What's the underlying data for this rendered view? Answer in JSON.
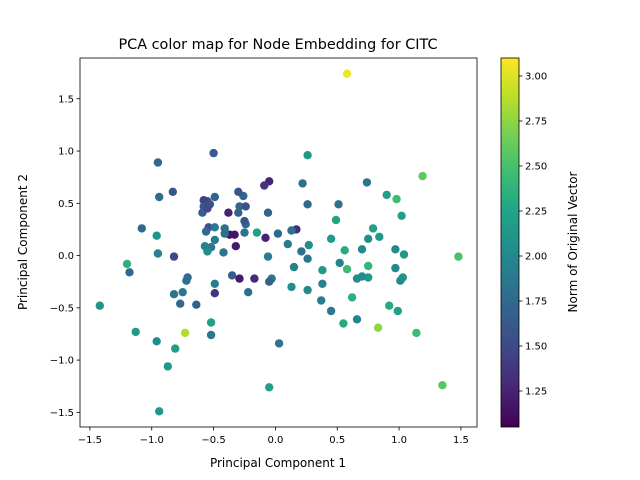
{
  "chart_data": {
    "type": "scatter",
    "title": "PCA color map for Node Embedding for CITC",
    "xlabel": "Principal Component 1",
    "ylabel": "Principal Component 2",
    "xlim": [
      -1.58,
      1.63
    ],
    "ylim": [
      -1.64,
      1.89
    ],
    "xticks": [
      -1.5,
      -1.0,
      -0.5,
      0.0,
      0.5,
      1.0,
      1.5
    ],
    "xtick_labels": [
      "−1.5",
      "−1.0",
      "−0.5",
      "0.0",
      "0.5",
      "1.0",
      "1.5"
    ],
    "yticks": [
      -1.5,
      -1.0,
      -0.5,
      0.0,
      0.5,
      1.0,
      1.5
    ],
    "ytick_labels": [
      "−1.5",
      "−1.0",
      "−0.5",
      "0.0",
      "0.5",
      "1.0",
      "1.5"
    ],
    "grid": false,
    "colormap": "viridis",
    "colorbar": {
      "label": "Norm of Original Vector",
      "range": [
        1.05,
        3.1
      ],
      "ticks": [
        1.25,
        1.5,
        1.75,
        2.0,
        2.25,
        2.5,
        2.75,
        3.0
      ],
      "tick_labels": [
        "1.25",
        "1.50",
        "1.75",
        "2.00",
        "2.25",
        "2.50",
        "2.75",
        "3.00"
      ]
    },
    "points": [
      {
        "x": 0.58,
        "y": 1.74,
        "c": 3.05
      },
      {
        "x": 1.19,
        "y": 0.76,
        "c": 2.6
      },
      {
        "x": 1.48,
        "y": -0.01,
        "c": 2.5
      },
      {
        "x": 1.35,
        "y": -1.24,
        "c": 2.55
      },
      {
        "x": 1.14,
        "y": -0.74,
        "c": 2.45
      },
      {
        "x": 0.83,
        "y": -0.69,
        "c": 2.75
      },
      {
        "x": 0.55,
        "y": -0.65,
        "c": 2.3
      },
      {
        "x": 0.92,
        "y": -0.48,
        "c": 2.3
      },
      {
        "x": 0.62,
        "y": -0.4,
        "c": 2.35
      },
      {
        "x": 0.58,
        "y": -0.13,
        "c": 2.45
      },
      {
        "x": 0.75,
        "y": -0.1,
        "c": 2.4
      },
      {
        "x": 0.56,
        "y": 0.05,
        "c": 2.3
      },
      {
        "x": 0.49,
        "y": 0.34,
        "c": 2.25
      },
      {
        "x": 0.45,
        "y": 0.16,
        "c": 2.15
      },
      {
        "x": 0.26,
        "y": 0.96,
        "c": 2.15
      },
      {
        "x": 0.9,
        "y": 0.58,
        "c": 2.2
      },
      {
        "x": 0.98,
        "y": 0.54,
        "c": 2.45
      },
      {
        "x": 1.02,
        "y": 0.38,
        "c": 2.2
      },
      {
        "x": 0.79,
        "y": 0.26,
        "c": 2.2
      },
      {
        "x": 0.84,
        "y": 0.18,
        "c": 2.15
      },
      {
        "x": 0.75,
        "y": 0.16,
        "c": 2.05
      },
      {
        "x": 0.7,
        "y": 0.06,
        "c": 2.0
      },
      {
        "x": 0.97,
        "y": 0.06,
        "c": 2.0
      },
      {
        "x": 1.04,
        "y": 0.01,
        "c": 2.15
      },
      {
        "x": 0.97,
        "y": -0.12,
        "c": 2.0
      },
      {
        "x": 1.03,
        "y": -0.21,
        "c": 2.1
      },
      {
        "x": 1.01,
        "y": -0.24,
        "c": 2.05
      },
      {
        "x": 0.75,
        "y": -0.21,
        "c": 2.15
      },
      {
        "x": 0.7,
        "y": -0.2,
        "c": 2.05
      },
      {
        "x": 0.66,
        "y": -0.22,
        "c": 2.05
      },
      {
        "x": 0.52,
        "y": -0.07,
        "c": 1.95
      },
      {
        "x": 0.38,
        "y": -0.14,
        "c": 2.15
      },
      {
        "x": 0.38,
        "y": -0.27,
        "c": 1.95
      },
      {
        "x": 0.37,
        "y": -0.43,
        "c": 1.9
      },
      {
        "x": 0.45,
        "y": -0.53,
        "c": 1.85
      },
      {
        "x": 0.66,
        "y": -0.61,
        "c": 1.95
      },
      {
        "x": 0.99,
        "y": -0.53,
        "c": 2.2
      },
      {
        "x": 0.74,
        "y": 0.7,
        "c": 1.85
      },
      {
        "x": 0.51,
        "y": 0.49,
        "c": 1.8
      },
      {
        "x": 0.26,
        "y": 0.49,
        "c": 1.75
      },
      {
        "x": 0.22,
        "y": 0.69,
        "c": 1.8
      },
      {
        "x": 0.27,
        "y": 0.1,
        "c": 2.05
      },
      {
        "x": 0.21,
        "y": 0.04,
        "c": 1.8
      },
      {
        "x": 0.26,
        "y": -0.03,
        "c": 1.85
      },
      {
        "x": 0.17,
        "y": 0.25,
        "c": 1.3
      },
      {
        "x": 0.13,
        "y": 0.24,
        "c": 1.8
      },
      {
        "x": 0.1,
        "y": 0.11,
        "c": 1.9
      },
      {
        "x": 0.15,
        "y": -0.11,
        "c": 1.95
      },
      {
        "x": 0.26,
        "y": -0.33,
        "c": 2.0
      },
      {
        "x": 0.13,
        "y": -0.3,
        "c": 2.05
      },
      {
        "x": 0.03,
        "y": -0.84,
        "c": 1.85
      },
      {
        "x": -0.05,
        "y": -1.26,
        "c": 2.2
      },
      {
        "x": -0.03,
        "y": -0.22,
        "c": 1.85
      },
      {
        "x": -0.05,
        "y": -0.25,
        "c": 1.7
      },
      {
        "x": -0.06,
        "y": -0.01,
        "c": 1.9
      },
      {
        "x": 0.02,
        "y": 0.21,
        "c": 1.75
      },
      {
        "x": -0.06,
        "y": 0.41,
        "c": 1.7
      },
      {
        "x": -0.05,
        "y": 0.71,
        "c": 1.25
      },
      {
        "x": -0.09,
        "y": 0.67,
        "c": 1.35
      },
      {
        "x": -0.08,
        "y": 0.17,
        "c": 1.25
      },
      {
        "x": -0.15,
        "y": 0.22,
        "c": 2.2
      },
      {
        "x": -0.17,
        "y": -0.22,
        "c": 1.3
      },
      {
        "x": -0.29,
        "y": -0.22,
        "c": 1.2
      },
      {
        "x": -0.22,
        "y": -0.35,
        "c": 1.8
      },
      {
        "x": -0.35,
        "y": -0.19,
        "c": 1.65
      },
      {
        "x": -0.32,
        "y": 0.09,
        "c": 1.2
      },
      {
        "x": -0.33,
        "y": 0.2,
        "c": 1.15
      },
      {
        "x": -0.37,
        "y": 0.2,
        "c": 1.15
      },
      {
        "x": -0.25,
        "y": 0.22,
        "c": 1.85
      },
      {
        "x": -0.24,
        "y": 0.3,
        "c": 1.75
      },
      {
        "x": -0.25,
        "y": 0.33,
        "c": 1.6
      },
      {
        "x": -0.3,
        "y": 0.41,
        "c": 1.7
      },
      {
        "x": -0.29,
        "y": 0.47,
        "c": 1.75
      },
      {
        "x": -0.24,
        "y": 0.47,
        "c": 1.55
      },
      {
        "x": -0.26,
        "y": 0.57,
        "c": 1.75
      },
      {
        "x": -0.3,
        "y": 0.61,
        "c": 1.6
      },
      {
        "x": -0.38,
        "y": 0.41,
        "c": 1.25
      },
      {
        "x": -0.41,
        "y": 0.26,
        "c": 1.8
      },
      {
        "x": -0.41,
        "y": 0.21,
        "c": 1.8
      },
      {
        "x": -0.42,
        "y": 0.03,
        "c": 1.85
      },
      {
        "x": -0.5,
        "y": 0.98,
        "c": 1.65
      },
      {
        "x": -0.49,
        "y": 0.56,
        "c": 1.7
      },
      {
        "x": -0.53,
        "y": 0.49,
        "c": 1.55
      },
      {
        "x": -0.55,
        "y": 0.52,
        "c": 1.55
      },
      {
        "x": -0.58,
        "y": 0.53,
        "c": 1.45
      },
      {
        "x": -0.58,
        "y": 0.47,
        "c": 1.6
      },
      {
        "x": -0.59,
        "y": 0.41,
        "c": 1.65
      },
      {
        "x": -0.55,
        "y": 0.45,
        "c": 1.5
      },
      {
        "x": -0.54,
        "y": 0.27,
        "c": 1.55
      },
      {
        "x": -0.56,
        "y": 0.23,
        "c": 1.75
      },
      {
        "x": -0.49,
        "y": 0.27,
        "c": 1.9
      },
      {
        "x": -0.49,
        "y": 0.15,
        "c": 1.9
      },
      {
        "x": -0.52,
        "y": 0.08,
        "c": 1.85
      },
      {
        "x": -0.55,
        "y": 0.04,
        "c": 2.05
      },
      {
        "x": -0.57,
        "y": 0.09,
        "c": 1.95
      },
      {
        "x": -0.49,
        "y": -0.27,
        "c": 1.9
      },
      {
        "x": -0.49,
        "y": -0.36,
        "c": 1.35
      },
      {
        "x": -0.52,
        "y": -0.64,
        "c": 2.2
      },
      {
        "x": -0.52,
        "y": -0.76,
        "c": 1.85
      },
      {
        "x": -0.64,
        "y": -0.47,
        "c": 1.7
      },
      {
        "x": -0.71,
        "y": -0.21,
        "c": 1.75
      },
      {
        "x": -0.72,
        "y": -0.24,
        "c": 1.8
      },
      {
        "x": -0.75,
        "y": -0.35,
        "c": 1.85
      },
      {
        "x": -0.77,
        "y": -0.46,
        "c": 1.75
      },
      {
        "x": -0.82,
        "y": -0.37,
        "c": 1.85
      },
      {
        "x": -0.73,
        "y": -0.74,
        "c": 2.85
      },
      {
        "x": -0.81,
        "y": -0.89,
        "c": 2.2
      },
      {
        "x": -0.87,
        "y": -1.06,
        "c": 2.15
      },
      {
        "x": -0.94,
        "y": -1.49,
        "c": 2.15
      },
      {
        "x": -0.96,
        "y": -0.82,
        "c": 2.05
      },
      {
        "x": -0.95,
        "y": 0.02,
        "c": 1.95
      },
      {
        "x": -0.96,
        "y": 0.19,
        "c": 2.1
      },
      {
        "x": -0.94,
        "y": 0.56,
        "c": 1.8
      },
      {
        "x": -0.95,
        "y": 0.89,
        "c": 1.75
      },
      {
        "x": -0.83,
        "y": 0.61,
        "c": 1.6
      },
      {
        "x": -0.82,
        "y": -0.01,
        "c": 1.5
      },
      {
        "x": -1.08,
        "y": 0.26,
        "c": 1.75
      },
      {
        "x": -1.18,
        "y": -0.16,
        "c": 1.75
      },
      {
        "x": -1.2,
        "y": -0.08,
        "c": 2.35
      },
      {
        "x": -1.13,
        "y": -0.73,
        "c": 2.15
      },
      {
        "x": -1.42,
        "y": -0.48,
        "c": 2.1
      }
    ]
  }
}
